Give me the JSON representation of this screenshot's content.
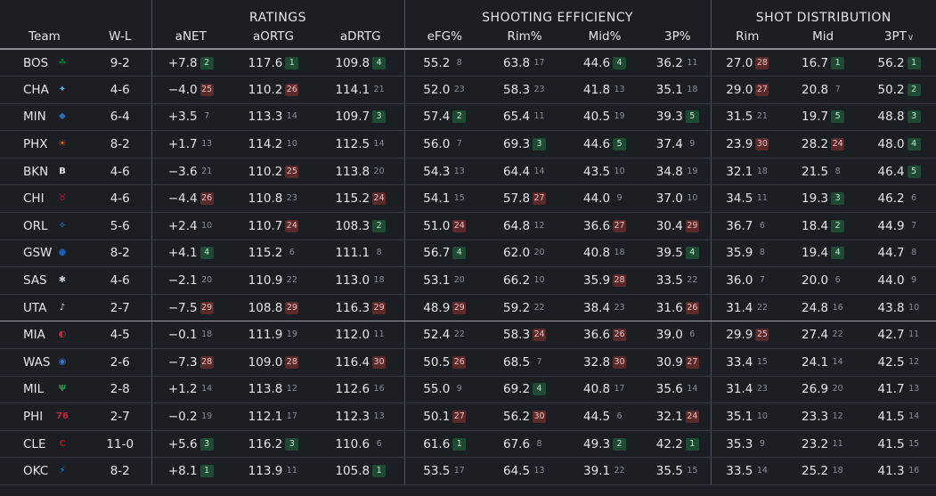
{
  "groups": {
    "ratings": "RATINGS",
    "shooting": "SHOOTING EFFICIENCY",
    "distribution": "SHOT DISTRIBUTION"
  },
  "headers": {
    "team": "Team",
    "wl": "W-L",
    "anet": "aNET",
    "aortg": "aORTG",
    "adrtg": "aDRTG",
    "efg": "eFG%",
    "rimpct": "Rim%",
    "midpct": "Mid%",
    "threepct": "3P%",
    "rim": "Rim",
    "mid": "Mid",
    "threept": "3PT",
    "sort_icon": "chevron-down-icon"
  },
  "colors": {
    "background": "#1b1f24",
    "rank_good": "#1f4b35",
    "rank_bad": "#5a2a2b"
  },
  "teams": [
    {
      "abbr": "BOS",
      "wl": "9-2",
      "logo": "celtics-logo",
      "logo_color": "#007a33",
      "logo_glyph": "☘",
      "anet": [
        "+7.8",
        "2"
      ],
      "aortg": [
        "117.6",
        "1"
      ],
      "adrtg": [
        "109.8",
        "4"
      ],
      "efg": [
        "55.2",
        "8"
      ],
      "rimpct": [
        "63.8",
        "17"
      ],
      "midpct": [
        "44.6",
        "4"
      ],
      "threepct": [
        "36.2",
        "11"
      ],
      "rim": [
        "27.0",
        "28"
      ],
      "mid": [
        "16.7",
        "1"
      ],
      "threept": [
        "56.2",
        "1"
      ]
    },
    {
      "abbr": "CHA",
      "wl": "4-6",
      "logo": "hornets-logo",
      "logo_color": "#5bb3c7",
      "logo_glyph": "✦",
      "anet": [
        "−4.0",
        "25"
      ],
      "aortg": [
        "110.2",
        "26"
      ],
      "adrtg": [
        "114.1",
        "21"
      ],
      "efg": [
        "52.0",
        "23"
      ],
      "rimpct": [
        "58.3",
        "23"
      ],
      "midpct": [
        "41.8",
        "13"
      ],
      "threepct": [
        "35.1",
        "18"
      ],
      "rim": [
        "29.0",
        "27"
      ],
      "mid": [
        "20.8",
        "7"
      ],
      "threept": [
        "50.2",
        "2"
      ]
    },
    {
      "abbr": "MIN",
      "wl": "6-4",
      "logo": "timberwolves-logo",
      "logo_color": "#2e6fb5",
      "logo_glyph": "◆",
      "anet": [
        "+3.5",
        "7"
      ],
      "aortg": [
        "113.3",
        "14"
      ],
      "adrtg": [
        "109.7",
        "3"
      ],
      "efg": [
        "57.4",
        "2"
      ],
      "rimpct": [
        "65.4",
        "11"
      ],
      "midpct": [
        "40.5",
        "19"
      ],
      "threepct": [
        "39.3",
        "5"
      ],
      "rim": [
        "31.5",
        "21"
      ],
      "mid": [
        "19.7",
        "5"
      ],
      "threept": [
        "48.8",
        "3"
      ]
    },
    {
      "abbr": "PHX",
      "wl": "8-2",
      "logo": "suns-logo",
      "logo_color": "#e56020",
      "logo_glyph": "☀",
      "anet": [
        "+1.7",
        "13"
      ],
      "aortg": [
        "114.2",
        "10"
      ],
      "adrtg": [
        "112.5",
        "14"
      ],
      "efg": [
        "56.0",
        "7"
      ],
      "rimpct": [
        "69.3",
        "3"
      ],
      "midpct": [
        "44.6",
        "5"
      ],
      "threepct": [
        "37.4",
        "9"
      ],
      "rim": [
        "23.9",
        "30"
      ],
      "mid": [
        "28.2",
        "24"
      ],
      "threept": [
        "48.0",
        "4"
      ]
    },
    {
      "abbr": "BKN",
      "wl": "4-6",
      "logo": "nets-logo",
      "logo_color": "#e4e6e9",
      "logo_glyph": "B",
      "anet": [
        "−3.6",
        "21"
      ],
      "aortg": [
        "110.2",
        "25"
      ],
      "adrtg": [
        "113.8",
        "20"
      ],
      "efg": [
        "54.3",
        "13"
      ],
      "rimpct": [
        "64.4",
        "14"
      ],
      "midpct": [
        "43.5",
        "10"
      ],
      "threepct": [
        "34.8",
        "19"
      ],
      "rim": [
        "32.1",
        "18"
      ],
      "mid": [
        "21.5",
        "8"
      ],
      "threept": [
        "46.4",
        "5"
      ]
    },
    {
      "abbr": "CHI",
      "wl": "4-6",
      "logo": "bulls-logo",
      "logo_color": "#ce1141",
      "logo_glyph": "♉",
      "anet": [
        "−4.4",
        "26"
      ],
      "aortg": [
        "110.8",
        "23"
      ],
      "adrtg": [
        "115.2",
        "24"
      ],
      "efg": [
        "54.1",
        "15"
      ],
      "rimpct": [
        "57.8",
        "27"
      ],
      "midpct": [
        "44.0",
        "9"
      ],
      "threepct": [
        "37.0",
        "10"
      ],
      "rim": [
        "34.5",
        "11"
      ],
      "mid": [
        "19.3",
        "3"
      ],
      "threept": [
        "46.2",
        "6"
      ]
    },
    {
      "abbr": "ORL",
      "wl": "5-6",
      "logo": "magic-logo",
      "logo_color": "#3d8fd6",
      "logo_glyph": "✧",
      "anet": [
        "+2.4",
        "10"
      ],
      "aortg": [
        "110.7",
        "24"
      ],
      "adrtg": [
        "108.3",
        "2"
      ],
      "efg": [
        "51.0",
        "24"
      ],
      "rimpct": [
        "64.8",
        "12"
      ],
      "midpct": [
        "36.6",
        "27"
      ],
      "threepct": [
        "30.4",
        "29"
      ],
      "rim": [
        "36.7",
        "6"
      ],
      "mid": [
        "18.4",
        "2"
      ],
      "threept": [
        "44.9",
        "7"
      ]
    },
    {
      "abbr": "GSW",
      "wl": "8-2",
      "logo": "warriors-logo",
      "logo_color": "#1d5bb5",
      "logo_glyph": "●",
      "anet": [
        "+4.1",
        "4"
      ],
      "aortg": [
        "115.2",
        "6"
      ],
      "adrtg": [
        "111.1",
        "8"
      ],
      "efg": [
        "56.7",
        "4"
      ],
      "rimpct": [
        "62.0",
        "20"
      ],
      "midpct": [
        "40.8",
        "18"
      ],
      "threepct": [
        "39.5",
        "4"
      ],
      "rim": [
        "35.9",
        "8"
      ],
      "mid": [
        "19.4",
        "4"
      ],
      "threept": [
        "44.7",
        "8"
      ]
    },
    {
      "abbr": "SAS",
      "wl": "4-6",
      "logo": "spurs-logo",
      "logo_color": "#c4ced4",
      "logo_glyph": "✱",
      "anet": [
        "−2.1",
        "20"
      ],
      "aortg": [
        "110.9",
        "22"
      ],
      "adrtg": [
        "113.0",
        "18"
      ],
      "efg": [
        "53.1",
        "20"
      ],
      "rimpct": [
        "66.2",
        "10"
      ],
      "midpct": [
        "35.9",
        "28"
      ],
      "threepct": [
        "33.5",
        "22"
      ],
      "rim": [
        "36.0",
        "7"
      ],
      "mid": [
        "20.0",
        "6"
      ],
      "threept": [
        "44.0",
        "9"
      ]
    },
    {
      "abbr": "UTA",
      "wl": "2-7",
      "logo": "jazz-logo",
      "logo_color": "#e4e6e9",
      "logo_glyph": "♪",
      "anet": [
        "−7.5",
        "29"
      ],
      "aortg": [
        "108.8",
        "29"
      ],
      "adrtg": [
        "116.3",
        "29"
      ],
      "efg": [
        "48.9",
        "29"
      ],
      "rimpct": [
        "59.2",
        "22"
      ],
      "midpct": [
        "38.4",
        "23"
      ],
      "threepct": [
        "31.6",
        "26"
      ],
      "rim": [
        "31.4",
        "22"
      ],
      "mid": [
        "24.8",
        "16"
      ],
      "threept": [
        "43.8",
        "10"
      ]
    },
    {
      "abbr": "MIA",
      "wl": "4-5",
      "logo": "heat-logo",
      "logo_color": "#d0223f",
      "logo_glyph": "◐",
      "anet": [
        "−0.1",
        "18"
      ],
      "aortg": [
        "111.9",
        "19"
      ],
      "adrtg": [
        "112.0",
        "11"
      ],
      "efg": [
        "52.4",
        "22"
      ],
      "rimpct": [
        "58.3",
        "24"
      ],
      "midpct": [
        "36.6",
        "26"
      ],
      "threepct": [
        "39.0",
        "6"
      ],
      "rim": [
        "29.9",
        "25"
      ],
      "mid": [
        "27.4",
        "22"
      ],
      "threept": [
        "42.7",
        "11"
      ]
    },
    {
      "abbr": "WAS",
      "wl": "2-6",
      "logo": "wizards-logo",
      "logo_color": "#3a6fc4",
      "logo_glyph": "◉",
      "anet": [
        "−7.3",
        "28"
      ],
      "aortg": [
        "109.0",
        "28"
      ],
      "adrtg": [
        "116.4",
        "30"
      ],
      "efg": [
        "50.5",
        "26"
      ],
      "rimpct": [
        "68.5",
        "7"
      ],
      "midpct": [
        "32.8",
        "30"
      ],
      "threepct": [
        "30.9",
        "27"
      ],
      "rim": [
        "33.4",
        "15"
      ],
      "mid": [
        "24.1",
        "14"
      ],
      "threept": [
        "42.5",
        "12"
      ]
    },
    {
      "abbr": "MIL",
      "wl": "2-8",
      "logo": "bucks-logo",
      "logo_color": "#2e8b4a",
      "logo_glyph": "Ψ",
      "anet": [
        "+1.2",
        "14"
      ],
      "aortg": [
        "113.8",
        "12"
      ],
      "adrtg": [
        "112.6",
        "16"
      ],
      "efg": [
        "55.0",
        "9"
      ],
      "rimpct": [
        "69.2",
        "4"
      ],
      "midpct": [
        "40.8",
        "17"
      ],
      "threepct": [
        "35.6",
        "14"
      ],
      "rim": [
        "31.4",
        "23"
      ],
      "mid": [
        "26.9",
        "20"
      ],
      "threept": [
        "41.7",
        "13"
      ]
    },
    {
      "abbr": "PHI",
      "wl": "2-7",
      "logo": "76ers-logo",
      "logo_color": "#d0223f",
      "logo_glyph": "76",
      "anet": [
        "−0.2",
        "19"
      ],
      "aortg": [
        "112.1",
        "17"
      ],
      "adrtg": [
        "112.3",
        "13"
      ],
      "efg": [
        "50.1",
        "27"
      ],
      "rimpct": [
        "56.2",
        "30"
      ],
      "midpct": [
        "44.5",
        "6"
      ],
      "threepct": [
        "32.1",
        "24"
      ],
      "rim": [
        "35.1",
        "10"
      ],
      "mid": [
        "23.3",
        "12"
      ],
      "threept": [
        "41.5",
        "14"
      ]
    },
    {
      "abbr": "CLE",
      "wl": "11-0",
      "logo": "cavaliers-logo",
      "logo_color": "#9b1c30",
      "logo_glyph": "C",
      "anet": [
        "+5.6",
        "3"
      ],
      "aortg": [
        "116.2",
        "3"
      ],
      "adrtg": [
        "110.6",
        "6"
      ],
      "efg": [
        "61.6",
        "1"
      ],
      "rimpct": [
        "67.6",
        "8"
      ],
      "midpct": [
        "49.3",
        "2"
      ],
      "threepct": [
        "42.2",
        "1"
      ],
      "rim": [
        "35.3",
        "9"
      ],
      "mid": [
        "23.2",
        "11"
      ],
      "threept": [
        "41.5",
        "15"
      ]
    },
    {
      "abbr": "OKC",
      "wl": "8-2",
      "logo": "thunder-logo",
      "logo_color": "#2b8ad9",
      "logo_glyph": "⚡",
      "anet": [
        "+8.1",
        "1"
      ],
      "aortg": [
        "113.9",
        "11"
      ],
      "adrtg": [
        "105.8",
        "1"
      ],
      "efg": [
        "53.5",
        "17"
      ],
      "rimpct": [
        "64.5",
        "13"
      ],
      "midpct": [
        "39.1",
        "22"
      ],
      "threepct": [
        "35.5",
        "15"
      ],
      "rim": [
        "33.5",
        "14"
      ],
      "mid": [
        "25.2",
        "18"
      ],
      "threept": [
        "41.3",
        "16"
      ]
    }
  ]
}
